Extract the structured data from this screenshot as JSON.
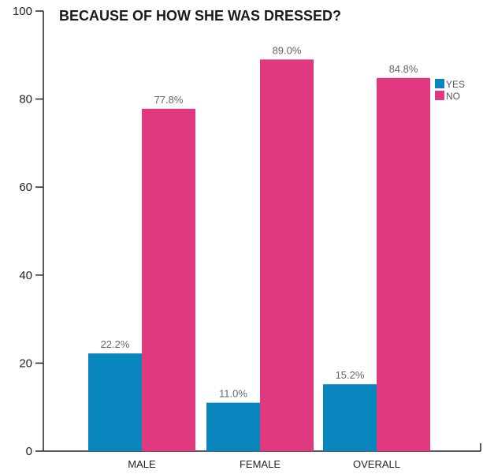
{
  "chart_data": {
    "type": "bar",
    "title": "BECAUSE OF HOW SHE WAS DRESSED?",
    "xlabel": "",
    "ylabel": "",
    "categories": [
      "MALE",
      "FEMALE",
      "OVERALL"
    ],
    "series": [
      {
        "name": "YES",
        "color": "#0a86be",
        "values": [
          22.2,
          11.0,
          15.2
        ],
        "labels": [
          "22.2%",
          "11.0%",
          "15.2%"
        ]
      },
      {
        "name": "NO",
        "color": "#e0397f",
        "values": [
          77.8,
          89.0,
          84.8
        ],
        "labels": [
          "77.8%",
          "89.0%",
          "84.8%"
        ]
      }
    ],
    "ylim": [
      0,
      100
    ],
    "yticks": [
      0,
      20,
      40,
      60,
      80,
      100
    ],
    "grid": false,
    "legend_position": "top-right"
  }
}
